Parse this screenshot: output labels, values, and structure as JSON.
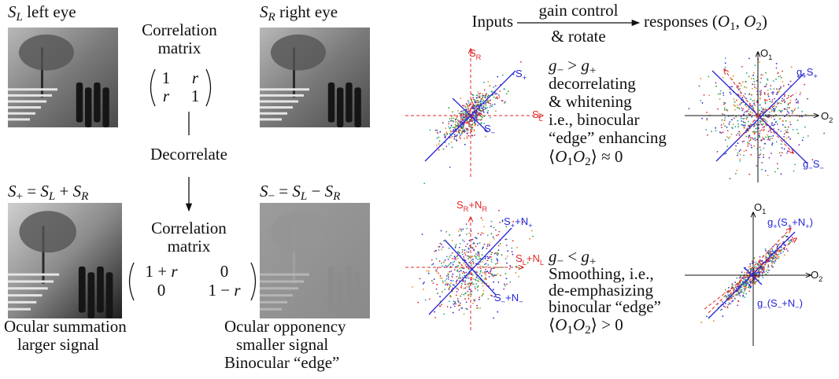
{
  "left": {
    "left_eye": [
      "S",
      {
        "sub": "L"
      },
      " left eye"
    ],
    "right_eye": [
      "S",
      {
        "sub": "R"
      },
      " right eye"
    ],
    "corr1": [
      "Correlation",
      "matrix"
    ],
    "matrix1": [
      [
        "1",
        "r"
      ],
      [
        "r",
        "1"
      ]
    ],
    "decorrelate": "Decorrelate",
    "sum_eq": [
      "S",
      {
        "sub": "+"
      },
      " = ",
      "S",
      {
        "sub": "L"
      },
      " + ",
      "S",
      {
        "sub": "R"
      }
    ],
    "diff_eq": [
      "S",
      {
        "sub": "−"
      },
      " = ",
      "S",
      {
        "sub": "L"
      },
      " − ",
      "S",
      {
        "sub": "R"
      }
    ],
    "corr2": [
      "Correlation",
      "matrix"
    ],
    "matrix2": [
      [
        [
          "1 + ",
          "r"
        ],
        "0"
      ],
      [
        "0",
        [
          "1 − ",
          "r"
        ]
      ]
    ],
    "summation": [
      "Ocular summation",
      "larger signal"
    ],
    "opponency": [
      "Ocular opponency",
      "smaller signal",
      "Binocular “edge”"
    ]
  },
  "right": {
    "inputs": "Inputs",
    "gain_control": "gain control",
    "rotate": "& rotate",
    "responses": [
      "responses (",
      "O",
      {
        "sub": "1"
      },
      ", ",
      "O",
      {
        "sub": "2"
      },
      ")"
    ],
    "top": {
      "input_labels": {
        "s_r": [
          "S",
          {
            "sub": "R"
          }
        ],
        "s_plus": [
          "S",
          {
            "sub": "+"
          }
        ],
        "s_l": [
          "S",
          {
            "sub": "L"
          }
        ],
        "s_minus": [
          "S",
          {
            "sub": "−"
          }
        ]
      },
      "text": [
        [
          "g",
          {
            "sub": "−"
          },
          " > ",
          "g",
          {
            "sub": "+"
          }
        ],
        "decorrelating",
        "& whitening",
        "i.e., binocular",
        "“edge” enhancing",
        [
          "⟨",
          "O",
          {
            "sub": "1"
          },
          "O",
          {
            "sub": "2"
          },
          "⟩ ≈ 0"
        ]
      ],
      "output_labels": {
        "o1": [
          "O",
          {
            "sub": "1"
          }
        ],
        "g_plus": [
          "g",
          {
            "sub": "+"
          },
          "S",
          {
            "sub": "+"
          }
        ],
        "o2": [
          "O",
          {
            "sub": "2"
          }
        ],
        "g_minus": [
          "g",
          {
            "sub": "−"
          },
          "S",
          {
            "sub": "−"
          }
        ]
      }
    },
    "bottom": {
      "input_labels": {
        "s_r": [
          "S",
          {
            "sub": "R"
          },
          "+N",
          {
            "sub": "R"
          }
        ],
        "s_plus": [
          "S",
          {
            "sub": "+"
          },
          "+N",
          {
            "sub": "+"
          }
        ],
        "s_l": [
          "S",
          {
            "sub": "L"
          },
          "+N",
          {
            "sub": "L"
          }
        ],
        "s_minus": [
          "S",
          {
            "sub": "−"
          },
          "+N",
          {
            "sub": "−"
          }
        ]
      },
      "text": [
        [
          "g",
          {
            "sub": "−"
          },
          " < ",
          "g",
          {
            "sub": "+"
          }
        ],
        "Smoothing, i.e.,",
        "de-emphasizing",
        "binocular “edge”",
        [
          "⟨",
          "O",
          {
            "sub": "1"
          },
          "O",
          {
            "sub": "2"
          },
          "⟩ > 0"
        ]
      ],
      "output_labels": {
        "o1": [
          "O",
          {
            "sub": "1"
          }
        ],
        "g_plus": [
          "g",
          {
            "sub": "+"
          },
          "(S",
          {
            "sub": "+"
          },
          "+N",
          {
            "sub": "+"
          },
          ")"
        ],
        "o2": [
          "O",
          {
            "sub": "2"
          }
        ],
        "g_minus": [
          "g",
          {
            "sub": "−"
          },
          "(S",
          {
            "sub": "−"
          },
          "+N",
          {
            "sub": "−"
          },
          ")"
        ]
      }
    }
  }
}
